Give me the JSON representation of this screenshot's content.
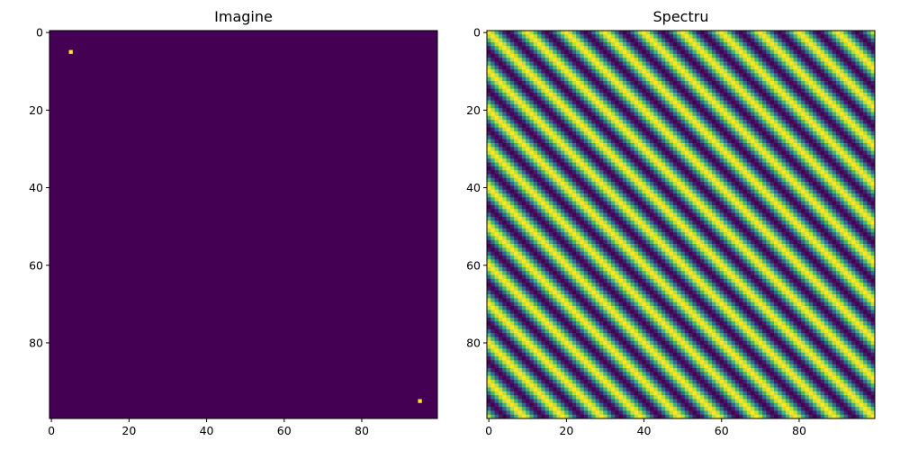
{
  "colors": {
    "low": "#440154",
    "high": "#fde725",
    "colormap": [
      "#440154",
      "#3b528b",
      "#21918c",
      "#5ec962",
      "#fde725"
    ]
  },
  "chart_data": [
    {
      "type": "heatmap",
      "title": "Imagine",
      "xlabel": "",
      "ylabel": "",
      "grid_size": [
        100,
        100
      ],
      "xlim": [
        -0.5,
        99.5
      ],
      "ylim": [
        99.5,
        -0.5
      ],
      "x_ticks": [
        0,
        20,
        40,
        60,
        80
      ],
      "y_ticks": [
        0,
        20,
        40,
        60,
        80
      ],
      "grid": false,
      "background_value": 0,
      "points": [
        {
          "x": 5,
          "y": 5,
          "value": 1
        },
        {
          "x": 95,
          "y": 95,
          "value": 1
        }
      ]
    },
    {
      "type": "heatmap",
      "title": "Spectru",
      "xlabel": "",
      "ylabel": "",
      "grid_size": [
        100,
        100
      ],
      "xlim": [
        -0.5,
        99.5
      ],
      "ylim": [
        99.5,
        -0.5
      ],
      "x_ticks": [
        0,
        20,
        40,
        60,
        80
      ],
      "y_ticks": [
        0,
        20,
        40,
        60,
        80
      ],
      "grid": false,
      "pattern": "diagonal-cosine",
      "cycles_per_axis": 10
    }
  ]
}
